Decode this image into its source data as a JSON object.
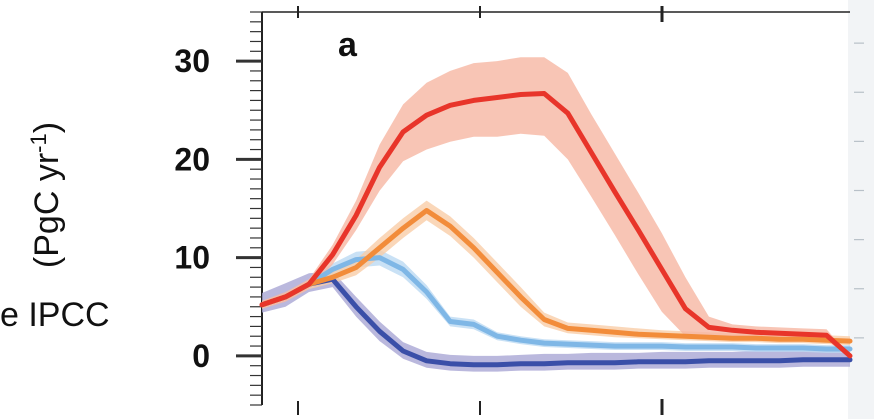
{
  "overlay_text": "e IPCC",
  "chart_data": {
    "type": "area",
    "panel_label": "a",
    "title": "",
    "xlabel": "",
    "ylabel": "(PgC yr-1)",
    "ylabel_unit_parts": [
      "(PgC yr",
      "-1",
      ")"
    ],
    "ylim": [
      -5,
      35
    ],
    "yticks": [
      0,
      10,
      20,
      30
    ],
    "ytick_labels": [
      "0",
      "10",
      "20",
      "30"
    ],
    "grid": false,
    "legend": "none",
    "x": [
      0,
      4,
      8,
      12,
      16,
      20,
      24,
      28,
      32,
      36,
      40,
      44,
      48,
      52,
      56,
      60,
      64,
      68,
      72,
      76,
      80,
      84,
      88,
      92,
      96,
      100
    ],
    "series": [
      {
        "color": "#e8352a",
        "band_color": "#f6b7a2",
        "values": [
          5.2,
          6.0,
          7.3,
          10.3,
          14.3,
          19.2,
          22.8,
          24.5,
          25.5,
          26.0,
          26.3,
          26.6,
          26.7,
          24.7,
          20.7,
          16.7,
          12.8,
          8.8,
          4.8,
          2.9,
          2.6,
          2.4,
          2.3,
          2.2,
          2.1,
          0.0
        ],
        "lower": [
          4.8,
          5.5,
          6.8,
          9.3,
          12.8,
          16.8,
          19.8,
          21.0,
          21.8,
          22.3,
          22.3,
          22.6,
          22.4,
          20.0,
          16.2,
          12.3,
          8.3,
          4.5,
          2.0,
          1.7,
          1.7,
          1.6,
          1.5,
          1.5,
          1.5,
          0.0
        ],
        "upper": [
          5.6,
          6.5,
          7.8,
          11.3,
          15.8,
          21.5,
          25.6,
          27.8,
          29.0,
          29.8,
          30.0,
          30.4,
          30.4,
          28.8,
          24.6,
          20.6,
          16.6,
          12.5,
          8.0,
          4.0,
          3.2,
          3.0,
          2.9,
          2.8,
          2.7,
          0.0
        ]
      },
      {
        "color": "#f28c3a",
        "band_color": "#f9cda8",
        "values": [
          5.2,
          6.0,
          7.3,
          8.0,
          9.0,
          11.0,
          13.0,
          14.8,
          13.2,
          11.0,
          8.5,
          6.0,
          3.7,
          2.8,
          2.6,
          2.4,
          2.2,
          2.1,
          2.0,
          1.9,
          1.8,
          1.8,
          1.7,
          1.7,
          1.6,
          1.5
        ],
        "lower": [
          4.8,
          5.6,
          6.8,
          7.4,
          8.2,
          10.0,
          12.0,
          13.8,
          12.2,
          10.0,
          7.5,
          5.0,
          3.0,
          2.3,
          2.1,
          1.9,
          1.8,
          1.7,
          1.6,
          1.5,
          1.4,
          1.4,
          1.3,
          1.3,
          1.2,
          1.1
        ],
        "upper": [
          5.6,
          6.4,
          7.8,
          8.6,
          9.8,
          12.0,
          14.0,
          15.8,
          14.2,
          12.0,
          9.5,
          7.0,
          4.4,
          3.4,
          3.2,
          3.0,
          2.8,
          2.6,
          2.5,
          2.4,
          2.3,
          2.3,
          2.2,
          2.2,
          2.1,
          2.0
        ]
      },
      {
        "color": "#7fb7e6",
        "band_color": "#bcdaf2",
        "values": [
          5.2,
          6.0,
          7.3,
          8.8,
          9.8,
          10.0,
          8.8,
          6.5,
          3.5,
          3.2,
          2.0,
          1.6,
          1.3,
          1.2,
          1.1,
          1.0,
          1.0,
          1.0,
          0.9,
          0.9,
          0.9,
          0.8,
          0.8,
          0.8,
          0.7,
          0.7
        ],
        "lower": [
          4.8,
          5.6,
          6.8,
          8.2,
          9.0,
          9.2,
          8.0,
          5.8,
          3.0,
          2.7,
          1.6,
          1.2,
          0.9,
          0.8,
          0.7,
          0.6,
          0.6,
          0.6,
          0.5,
          0.5,
          0.5,
          0.4,
          0.4,
          0.4,
          0.3,
          0.3
        ],
        "upper": [
          5.6,
          6.4,
          7.8,
          9.4,
          10.6,
          10.8,
          9.6,
          7.2,
          4.0,
          3.7,
          2.4,
          2.0,
          1.7,
          1.6,
          1.5,
          1.4,
          1.4,
          1.4,
          1.3,
          1.3,
          1.3,
          1.2,
          1.2,
          1.2,
          1.1,
          1.1
        ]
      },
      {
        "color": "#3a4fa8",
        "band_color": "#a9a6d4",
        "values": [
          5.2,
          6.0,
          7.3,
          7.8,
          5.0,
          2.5,
          0.5,
          -0.5,
          -0.8,
          -0.9,
          -0.9,
          -0.8,
          -0.8,
          -0.7,
          -0.7,
          -0.7,
          -0.6,
          -0.6,
          -0.6,
          -0.5,
          -0.5,
          -0.5,
          -0.5,
          -0.4,
          -0.4,
          -0.4
        ],
        "lower": [
          4.4,
          5.0,
          6.5,
          7.0,
          4.0,
          1.5,
          -0.3,
          -1.2,
          -1.5,
          -1.6,
          -1.6,
          -1.5,
          -1.5,
          -1.4,
          -1.4,
          -1.4,
          -1.3,
          -1.3,
          -1.3,
          -1.2,
          -1.2,
          -1.2,
          -1.2,
          -1.1,
          -1.1,
          -1.1
        ],
        "upper": [
          6.4,
          7.4,
          8.4,
          8.6,
          6.0,
          3.5,
          1.4,
          0.4,
          0.1,
          0.0,
          0.0,
          0.1,
          0.2,
          0.2,
          0.3,
          0.3,
          0.3,
          0.4,
          0.4,
          0.4,
          0.4,
          0.5,
          0.5,
          0.5,
          0.5,
          0.5
        ]
      }
    ]
  }
}
